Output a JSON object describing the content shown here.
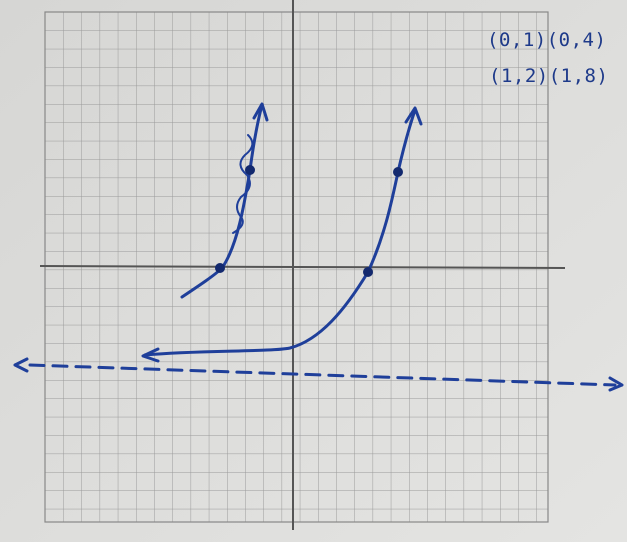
{
  "annotations": {
    "line1": "(0,1)(0,4)",
    "line2": "(1,2)(1,8)"
  }
}
